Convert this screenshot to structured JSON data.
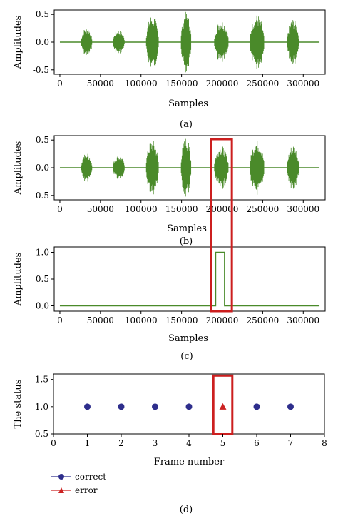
{
  "colors": {
    "waveform": "#4a8a2a",
    "correct": "#2e2e8c",
    "error": "#cc2222",
    "highlight": "#cc1f1f"
  },
  "chart_data": [
    {
      "id": "a",
      "type": "line",
      "caption": "(a)",
      "xlabel": "Samples",
      "ylabel": "Amplitudes",
      "xticks": [
        0,
        50000,
        100000,
        150000,
        200000,
        250000,
        300000
      ],
      "yticks": [
        "-0.5",
        "0.0",
        "0.5"
      ],
      "xlim": [
        -7000,
        327000
      ],
      "ylim": [
        -0.58,
        0.58
      ],
      "segments": [
        {
          "start": 26000,
          "end": 40000,
          "amp": 0.27
        },
        {
          "start": 65000,
          "end": 80000,
          "amp": 0.22
        },
        {
          "start": 106000,
          "end": 122000,
          "amp": 0.5
        },
        {
          "start": 149000,
          "end": 162000,
          "amp": 0.55
        },
        {
          "start": 190000,
          "end": 208000,
          "amp": 0.4
        },
        {
          "start": 234000,
          "end": 252000,
          "amp": 0.5
        },
        {
          "start": 280000,
          "end": 295000,
          "amp": 0.42
        }
      ]
    },
    {
      "id": "b",
      "type": "line",
      "caption": "(b)",
      "xlabel": "Samples",
      "ylabel": "Amplitudes",
      "xticks": [
        0,
        50000,
        100000,
        150000,
        200000,
        250000,
        300000
      ],
      "yticks": [
        "-0.5",
        "0.0",
        "0.5"
      ],
      "xlim": [
        -7000,
        327000
      ],
      "ylim": [
        -0.58,
        0.58
      ],
      "highlight_x": [
        186000,
        212000
      ],
      "segments": [
        {
          "start": 26000,
          "end": 40000,
          "amp": 0.27
        },
        {
          "start": 65000,
          "end": 80000,
          "amp": 0.22
        },
        {
          "start": 106000,
          "end": 122000,
          "amp": 0.5
        },
        {
          "start": 149000,
          "end": 162000,
          "amp": 0.55
        },
        {
          "start": 190000,
          "end": 208000,
          "amp": 0.4
        },
        {
          "start": 234000,
          "end": 252000,
          "amp": 0.5
        },
        {
          "start": 280000,
          "end": 295000,
          "amp": 0.42
        }
      ]
    },
    {
      "id": "c",
      "type": "line",
      "caption": "(c)",
      "xlabel": "Samples",
      "ylabel": "Amplitudes",
      "xticks": [
        0,
        50000,
        100000,
        150000,
        200000,
        250000,
        300000
      ],
      "yticks": [
        "0.0",
        "0.5",
        "1.0"
      ],
      "xlim": [
        -7000,
        327000
      ],
      "ylim": [
        -0.1,
        1.1
      ],
      "highlight_x": [
        186000,
        212000
      ],
      "x": [
        0,
        192000,
        192000,
        203000,
        203000,
        320000
      ],
      "y": [
        0,
        0,
        1,
        1,
        0,
        0
      ]
    },
    {
      "id": "d",
      "type": "scatter",
      "caption": "(d)",
      "xlabel": "Frame number",
      "ylabel": "The status",
      "xticks": [
        0,
        1,
        2,
        3,
        4,
        5,
        6,
        7,
        8
      ],
      "yticks": [
        "0.5",
        "1.0",
        "1.5"
      ],
      "xlim": [
        0,
        8
      ],
      "ylim": [
        0.5,
        1.6
      ],
      "highlight_x": [
        4.72,
        5.28
      ],
      "highlight_y": [
        0.5,
        1.57
      ],
      "series": [
        {
          "name": "correct",
          "x": [
            1,
            2,
            3,
            4,
            6,
            7
          ],
          "y": [
            1,
            1,
            1,
            1,
            1,
            1
          ]
        },
        {
          "name": "error",
          "x": [
            5
          ],
          "y": [
            1
          ]
        }
      ],
      "legend": [
        "correct",
        "error"
      ]
    }
  ]
}
